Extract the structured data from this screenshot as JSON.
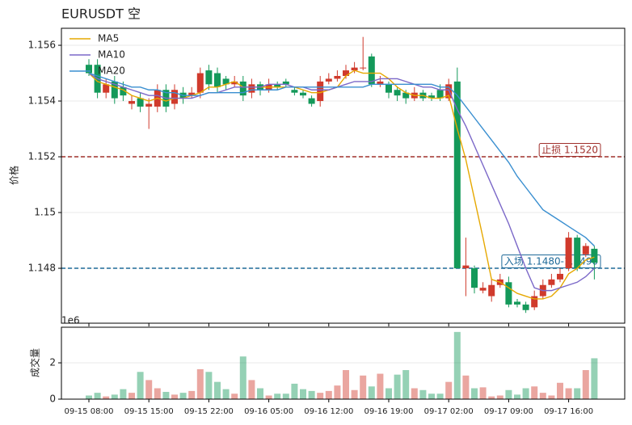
{
  "chart_data": [
    {
      "type": "candlestick",
      "title": "EURUSDT  空",
      "ylabel": "价格",
      "offset_label": "1e6",
      "categories": [
        "09-15 08:00",
        null,
        null,
        null,
        null,
        null,
        null,
        "09-15 15:00",
        null,
        null,
        null,
        null,
        null,
        null,
        "09-15 22:00",
        null,
        null,
        null,
        null,
        null,
        null,
        "09-16 05:00",
        null,
        null,
        null,
        null,
        null,
        null,
        "09-16 12:00",
        null,
        null,
        null,
        null,
        null,
        null,
        "09-16 19:00",
        null,
        null,
        null,
        null,
        null,
        null,
        "09-17 02:00",
        null,
        null,
        null,
        null,
        null,
        null,
        "09-17 09:00",
        null,
        null,
        null,
        null,
        null,
        null,
        "09-17 16:00",
        null,
        null,
        null
      ],
      "open": [
        1.1553,
        1.1553,
        1.1543,
        1.1547,
        1.1545,
        1.1539,
        1.1541,
        1.1538,
        1.1538,
        1.1544,
        1.1539,
        1.1543,
        1.1542,
        1.1543,
        1.1551,
        1.155,
        1.1548,
        1.1546,
        1.1547,
        1.1543,
        1.1546,
        1.1544,
        1.1546,
        1.1547,
        1.1544,
        1.1543,
        1.1541,
        1.154,
        1.1547,
        1.1548,
        1.1549,
        1.1551,
        1.1552,
        1.1556,
        1.1546,
        1.1546,
        1.1544,
        1.1543,
        1.1541,
        1.1543,
        1.1542,
        1.1544,
        1.1541,
        1.1547,
        1.148,
        1.148,
        1.1472,
        1.147,
        1.1474,
        1.1475,
        1.1468,
        1.1467,
        1.1466,
        1.147,
        1.1474,
        1.1476,
        1.148,
        1.1491,
        1.1485,
        1.1487
      ],
      "high": [
        1.1555,
        1.1555,
        1.1548,
        1.1549,
        1.1547,
        1.1542,
        1.1543,
        1.1541,
        1.1546,
        1.1546,
        1.1546,
        1.1545,
        1.1545,
        1.1552,
        1.1553,
        1.1552,
        1.1549,
        1.1549,
        1.1549,
        1.1548,
        1.1547,
        1.1548,
        1.1547,
        1.1548,
        1.1545,
        1.1544,
        1.1542,
        1.1549,
        1.155,
        1.1551,
        1.1553,
        1.1554,
        1.1563,
        1.1557,
        1.1549,
        1.1547,
        1.1545,
        1.1544,
        1.1545,
        1.1544,
        1.1543,
        1.1546,
        1.1548,
        1.1552,
        1.1491,
        1.1481,
        1.1475,
        1.1476,
        1.1478,
        1.1477,
        1.1469,
        1.1468,
        1.1472,
        1.1476,
        1.1478,
        1.148,
        1.1493,
        1.1492,
        1.1489,
        1.1488
      ],
      "low": [
        1.1549,
        1.1541,
        1.1541,
        1.1539,
        1.154,
        1.1537,
        1.1536,
        1.153,
        1.1536,
        1.1536,
        1.1537,
        1.1539,
        1.1541,
        1.1541,
        1.1544,
        1.1543,
        1.1544,
        1.1545,
        1.154,
        1.1541,
        1.1542,
        1.1543,
        1.1544,
        1.1545,
        1.1542,
        1.1541,
        1.1538,
        1.1538,
        1.1546,
        1.1547,
        1.1548,
        1.155,
        1.1551,
        1.1545,
        1.1545,
        1.1541,
        1.154,
        1.1539,
        1.154,
        1.154,
        1.154,
        1.154,
        1.154,
        1.148,
        1.147,
        1.1471,
        1.1471,
        1.1468,
        1.1473,
        1.1466,
        1.1466,
        1.1464,
        1.1465,
        1.1469,
        1.1473,
        1.1475,
        1.1479,
        1.1479,
        1.1484,
        1.1476
      ],
      "close": [
        1.155,
        1.1543,
        1.1546,
        1.1541,
        1.1542,
        1.154,
        1.1538,
        1.1539,
        1.1544,
        1.1538,
        1.1544,
        1.1541,
        1.1543,
        1.155,
        1.1546,
        1.1545,
        1.1546,
        1.1547,
        1.1542,
        1.1546,
        1.1544,
        1.1546,
        1.1545,
        1.1546,
        1.1543,
        1.1542,
        1.1539,
        1.1547,
        1.1548,
        1.1549,
        1.1551,
        1.1552,
        1.1552,
        1.1546,
        1.1547,
        1.1543,
        1.1542,
        1.1541,
        1.1543,
        1.1541,
        1.1541,
        1.1541,
        1.1546,
        1.148,
        1.1481,
        1.1473,
        1.1473,
        1.1474,
        1.1476,
        1.1467,
        1.1467,
        1.1465,
        1.147,
        1.1474,
        1.1476,
        1.1478,
        1.1491,
        1.148,
        1.1488,
        1.1482
      ],
      "up_color": "#d03a2c",
      "down_color": "#14995a",
      "series": [
        {
          "name": "MA5",
          "color": "#e6a800",
          "values": [
            1.155,
            1.1547,
            1.1546,
            1.1545,
            1.1544,
            1.1542,
            1.1541,
            1.154,
            1.1541,
            1.154,
            1.1541,
            1.1541,
            1.1542,
            1.1543,
            1.1545,
            1.1545,
            1.1546,
            1.1547,
            1.1545,
            1.1545,
            1.1545,
            1.1545,
            1.1545,
            1.1545,
            1.1545,
            1.1544,
            1.1543,
            1.1543,
            1.1544,
            1.1545,
            1.1549,
            1.1551,
            1.155,
            1.155,
            1.155,
            1.1548,
            1.1545,
            1.1543,
            1.1542,
            1.1542,
            1.1541,
            1.1541,
            1.1542,
            1.153,
            1.1519,
            1.1505,
            1.1491,
            1.1476,
            1.1475,
            1.1473,
            1.1471,
            1.147,
            1.1469,
            1.1469,
            1.147,
            1.1473,
            1.1478,
            1.148,
            1.1483,
            1.1484
          ]
        },
        {
          "name": "MA10",
          "color": "#7b68c8",
          "values": [
            1.155,
            1.1548,
            1.1547,
            1.1546,
            1.1545,
            1.1544,
            1.1543,
            1.1542,
            1.1542,
            1.1541,
            1.1541,
            1.1541,
            1.1541,
            1.1542,
            1.1543,
            1.1543,
            1.1544,
            1.1545,
            1.1545,
            1.1545,
            1.1545,
            1.1546,
            1.1546,
            1.1546,
            1.1545,
            1.1545,
            1.1544,
            1.1544,
            1.1544,
            1.1545,
            1.1546,
            1.1547,
            1.1547,
            1.1547,
            1.1548,
            1.1548,
            1.1548,
            1.1547,
            1.1546,
            1.1545,
            1.1545,
            1.1544,
            1.1544,
            1.1537,
            1.1531,
            1.1524,
            1.1517,
            1.151,
            1.1503,
            1.1496,
            1.1488,
            1.148,
            1.1473,
            1.1472,
            1.1472,
            1.1473,
            1.1474,
            1.1475,
            1.1477,
            1.148
          ]
        },
        {
          "name": "MA20",
          "color": "#3a8fd0",
          "values": [
            1.155,
            1.1549,
            1.1548,
            1.1547,
            1.1546,
            1.1545,
            1.1545,
            1.1544,
            1.1544,
            1.1543,
            1.1543,
            1.1542,
            1.1542,
            1.1542,
            1.1543,
            1.1543,
            1.1543,
            1.1543,
            1.1543,
            1.1544,
            1.1544,
            1.1544,
            1.1544,
            1.1545,
            1.1545,
            1.1545,
            1.1545,
            1.1545,
            1.1545,
            1.1545,
            1.1545,
            1.1545,
            1.1545,
            1.1546,
            1.1546,
            1.1546,
            1.1546,
            1.1546,
            1.1546,
            1.1546,
            1.1546,
            1.1545,
            1.1545,
            1.1542,
            1.1538,
            1.1534,
            1.153,
            1.1526,
            1.1522,
            1.1518,
            1.1513,
            1.1509,
            1.1505,
            1.1501,
            1.1499,
            1.1497,
            1.1495,
            1.1493,
            1.1491,
            1.1488
          ]
        }
      ],
      "hlines": [
        {
          "value": 1.152,
          "label": "止损 1.1520",
          "color": "#a0302c"
        },
        {
          "value": 1.148,
          "label": "入场 1.1480-1.1490",
          "color": "#1f6a99"
        }
      ],
      "ylim": [
        1.14603,
        1.15661
      ],
      "yticks": [
        1.148,
        1.15,
        1.152,
        1.154,
        1.156
      ],
      "grid": true,
      "legend": "upper left"
    },
    {
      "type": "bar",
      "ylabel": "成交量",
      "values": [
        0.2,
        0.35,
        0.15,
        0.25,
        0.55,
        0.35,
        1.5,
        1.05,
        0.6,
        0.4,
        0.25,
        0.35,
        0.45,
        1.65,
        1.5,
        0.95,
        0.55,
        0.3,
        2.35,
        1.05,
        0.6,
        0.2,
        0.3,
        0.3,
        0.85,
        0.55,
        0.45,
        0.35,
        0.45,
        0.75,
        1.6,
        0.5,
        1.3,
        0.7,
        1.4,
        0.6,
        1.35,
        1.6,
        0.6,
        0.5,
        0.3,
        0.3,
        0.95,
        3.7,
        1.3,
        0.6,
        0.65,
        0.15,
        0.2,
        0.5,
        0.25,
        0.6,
        0.7,
        0.35,
        0.2,
        0.9,
        0.6,
        0.6,
        1.6,
        2.25
      ],
      "ylim": [
        0,
        3.96
      ],
      "yticks": [
        0,
        2
      ],
      "grid": true
    }
  ]
}
